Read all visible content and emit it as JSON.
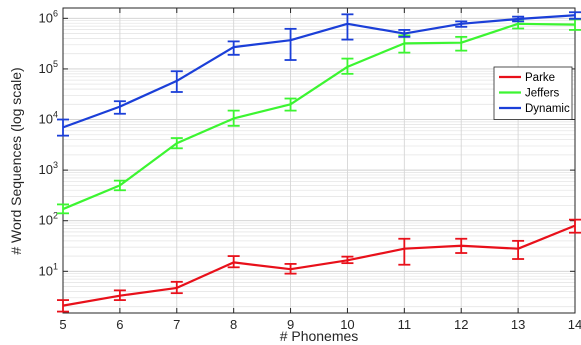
{
  "chart_data": {
    "type": "line",
    "xlabel": "# Phonemes",
    "ylabel": "# Word Sequences (log scale)",
    "x": [
      5,
      6,
      7,
      8,
      9,
      10,
      11,
      12,
      13,
      14
    ],
    "xlim": [
      5,
      14
    ],
    "ylim": [
      1.5,
      1600000
    ],
    "yscale": "log",
    "grid": true,
    "legend_position": "top-right",
    "y_ticks": [
      {
        "value": 10,
        "base": "10",
        "exp": "1"
      },
      {
        "value": 100,
        "base": "10",
        "exp": "2"
      },
      {
        "value": 1000,
        "base": "10",
        "exp": "3"
      },
      {
        "value": 10000,
        "base": "10",
        "exp": "4"
      },
      {
        "value": 100000,
        "base": "10",
        "exp": "5"
      },
      {
        "value": 1000000,
        "base": "10",
        "exp": "6"
      }
    ],
    "series": [
      {
        "name": "Parke",
        "color": "#e8101a",
        "values": [
          2.1,
          3.3,
          4.7,
          15,
          11,
          16.5,
          28,
          32,
          28,
          80
        ],
        "err_low": [
          1.6,
          2.7,
          3.7,
          12,
          9,
          14.5,
          13.5,
          23,
          17.5,
          58
        ],
        "err_high": [
          2.7,
          4.2,
          6.2,
          20,
          14,
          19.5,
          44,
          44,
          40,
          105
        ]
      },
      {
        "name": "Jeffers",
        "color": "#3cf531",
        "values": [
          170,
          500,
          3400,
          10500,
          20000,
          110000,
          320000,
          330000,
          780000,
          750000
        ],
        "err_low": [
          140,
          400,
          2700,
          7500,
          15000,
          80000,
          210000,
          230000,
          630000,
          590000
        ],
        "err_high": [
          210,
          620,
          4300,
          15000,
          26000,
          160000,
          460000,
          430000,
          950000,
          950000
        ]
      },
      {
        "name": "Dynamic",
        "color": "#1b3fd8",
        "values": [
          7000,
          18000,
          58000,
          270000,
          370000,
          780000,
          500000,
          780000,
          970000,
          1150000
        ],
        "err_low": [
          4800,
          13000,
          35000,
          190000,
          150000,
          380000,
          430000,
          680000,
          870000,
          980000
        ],
        "err_high": [
          10000,
          23000,
          90000,
          350000,
          620000,
          1200000,
          590000,
          870000,
          1080000,
          1320000
        ]
      }
    ]
  }
}
